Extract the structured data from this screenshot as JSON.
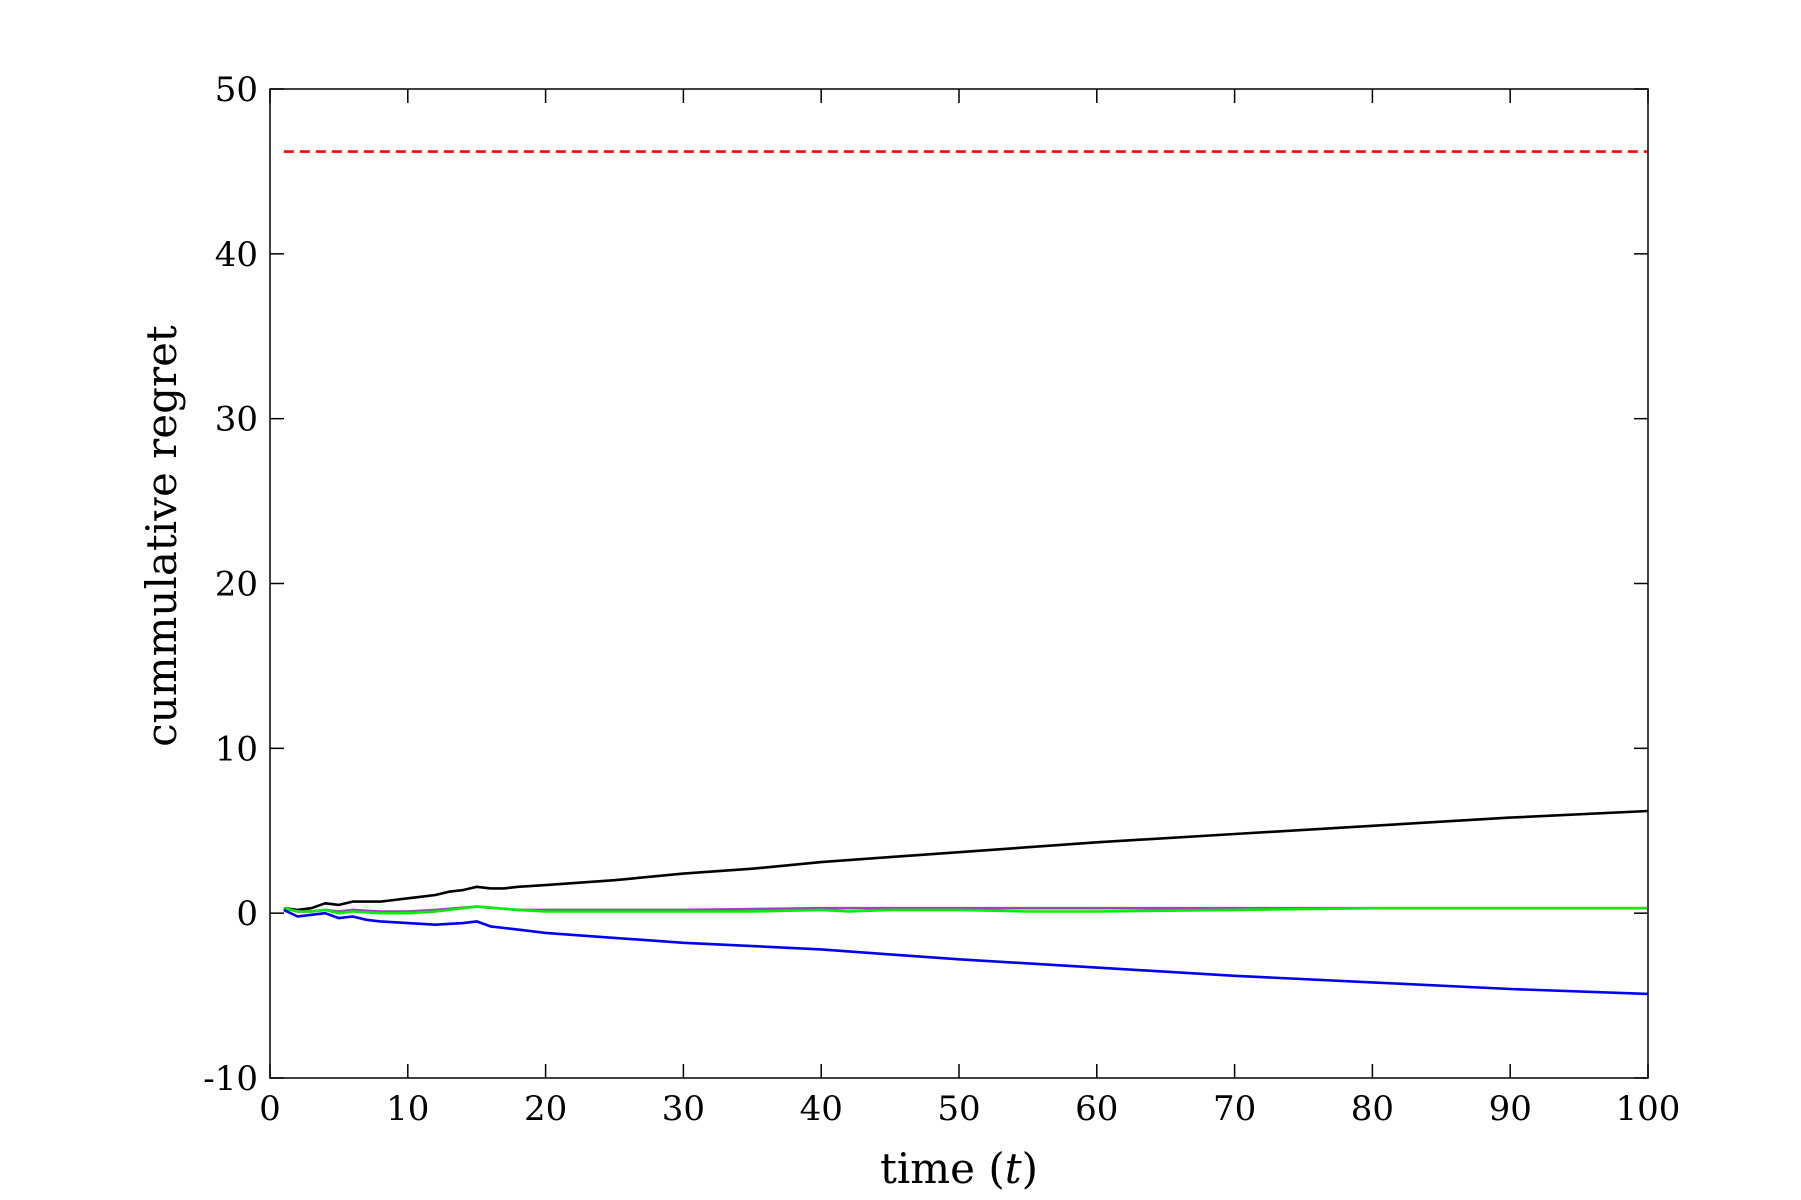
{
  "chart_data": {
    "type": "line",
    "title": "",
    "xlabel": "time (",
    "xlabel_var": "t",
    "xlabel_close": ")",
    "ylabel": "cummulative regret",
    "xlim": [
      0,
      100
    ],
    "ylim": [
      -10,
      50
    ],
    "xticks": [
      0,
      10,
      20,
      30,
      40,
      50,
      60,
      70,
      80,
      90,
      100
    ],
    "yticks": [
      -10,
      0,
      10,
      20,
      30,
      40,
      50
    ],
    "grid": false,
    "series": [
      {
        "color": "#ff0000",
        "dash": true,
        "x": [
          1,
          100
        ],
        "y": [
          46.2,
          46.2
        ]
      },
      {
        "color": "#000000",
        "dash": false,
        "x": [
          1,
          2,
          3,
          4,
          5,
          6,
          7,
          8,
          9,
          10,
          11,
          12,
          13,
          14,
          15,
          16,
          17,
          18,
          20,
          25,
          30,
          35,
          40,
          45,
          50,
          60,
          70,
          80,
          90,
          100
        ],
        "y": [
          0.3,
          0.2,
          0.3,
          0.6,
          0.5,
          0.7,
          0.7,
          0.7,
          0.8,
          0.9,
          1.0,
          1.1,
          1.3,
          1.4,
          1.6,
          1.5,
          1.5,
          1.6,
          1.7,
          2.0,
          2.4,
          2.7,
          3.1,
          3.4,
          3.7,
          4.3,
          4.8,
          5.3,
          5.8,
          6.2
        ]
      },
      {
        "color": "#a040c0",
        "dash": false,
        "x": [
          1,
          2,
          3,
          4,
          5,
          6,
          8,
          10,
          12,
          15,
          18,
          20,
          30,
          40,
          50,
          60,
          70,
          80,
          90,
          100
        ],
        "y": [
          0.3,
          0.1,
          0.1,
          0.2,
          0.1,
          0.2,
          0.1,
          0.1,
          0.2,
          0.4,
          0.2,
          0.2,
          0.2,
          0.3,
          0.3,
          0.3,
          0.3,
          0.3,
          0.3,
          0.3
        ]
      },
      {
        "color": "#00ee00",
        "dash": false,
        "x": [
          1,
          2,
          3,
          4,
          5,
          6,
          8,
          10,
          12,
          15,
          18,
          20,
          25,
          30,
          35,
          40,
          42,
          45,
          50,
          55,
          60,
          70,
          80,
          90,
          100
        ],
        "y": [
          0.3,
          0.1,
          0.1,
          0.2,
          0.0,
          0.1,
          0.0,
          0.0,
          0.1,
          0.4,
          0.2,
          0.1,
          0.1,
          0.1,
          0.1,
          0.2,
          0.1,
          0.2,
          0.2,
          0.1,
          0.1,
          0.2,
          0.3,
          0.3,
          0.3
        ]
      },
      {
        "color": "#0000ee",
        "dash": false,
        "x": [
          1,
          2,
          3,
          4,
          5,
          6,
          7,
          8,
          10,
          12,
          14,
          15,
          16,
          17,
          18,
          20,
          25,
          30,
          35,
          40,
          45,
          50,
          60,
          70,
          80,
          90,
          100
        ],
        "y": [
          0.2,
          -0.2,
          -0.1,
          0.0,
          -0.3,
          -0.2,
          -0.4,
          -0.5,
          -0.6,
          -0.7,
          -0.6,
          -0.5,
          -0.8,
          -0.9,
          -1.0,
          -1.2,
          -1.5,
          -1.8,
          -2.0,
          -2.2,
          -2.5,
          -2.8,
          -3.3,
          -3.8,
          -4.2,
          -4.6,
          -4.9
        ]
      }
    ]
  }
}
